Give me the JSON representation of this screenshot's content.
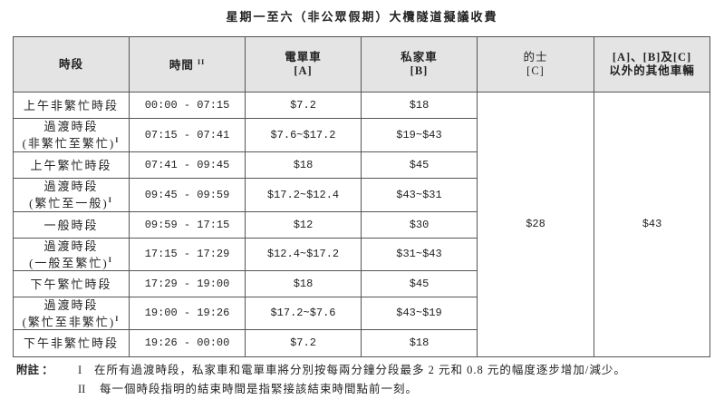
{
  "title": "星期一至六（非公眾假期）大欖隧道擬議收費",
  "headers": {
    "period": "時段",
    "time": "時間",
    "time_note": "II",
    "a_name": "電單車",
    "a_code": "[A]",
    "b_name": "私家車",
    "b_code": "[B]",
    "c_name": "的士",
    "c_code": "[C]",
    "other_line1": "[A]、[B]及[C]",
    "other_line2": "以外的其他車輛"
  },
  "rows": [
    {
      "period": "上午非繁忙時段",
      "sub": "",
      "note": "",
      "time": "00:00 - 07:15",
      "a": "$7.2",
      "b": "$18"
    },
    {
      "period": "過渡時段",
      "sub": "(非繁忙至繁忙)",
      "note": "I",
      "time": "07:15 - 07:41",
      "a": "$7.6~$17.2",
      "b": "$19~$43"
    },
    {
      "period": "上午繁忙時段",
      "sub": "",
      "note": "",
      "time": "07:41 - 09:45",
      "a": "$18",
      "b": "$45"
    },
    {
      "period": "過渡時段",
      "sub": "(繁忙至一般)",
      "note": "I",
      "time": "09:45 - 09:59",
      "a": "$17.2~$12.4",
      "b": "$43~$31"
    },
    {
      "period": "一般時段",
      "sub": "",
      "note": "",
      "time": "09:59 - 17:15",
      "a": "$12",
      "b": "$30"
    },
    {
      "period": "過渡時段",
      "sub": "(一般至繁忙)",
      "note": "I",
      "time": "17:15 - 17:29",
      "a": "$12.4~$17.2",
      "b": "$31~$43"
    },
    {
      "period": "下午繁忙時段",
      "sub": "",
      "note": "",
      "time": "17:29 - 19:00",
      "a": "$18",
      "b": "$45"
    },
    {
      "period": "過渡時段",
      "sub": "(繁忙至非繁忙)",
      "note": "I",
      "time": "19:00 - 19:26",
      "a": "$17.2~$7.6",
      "b": "$43~$19"
    },
    {
      "period": "下午非繁忙時段",
      "sub": "",
      "note": "",
      "time": "19:26 - 00:00",
      "a": "$7.2",
      "b": "$18"
    }
  ],
  "taxi_fee": "$28",
  "other_fee": "$43",
  "notes": {
    "label": "附註 ：",
    "items": [
      {
        "num": "I",
        "text": "在所有過渡時段，私家車和電單車將分別按每兩分鐘分段最多 2 元和 0.8 元的幅度逐步增加/減少。"
      },
      {
        "num": "II",
        "text": "每一個時段指明的結束時間是指緊接該結束時間點前一刻。"
      }
    ]
  }
}
